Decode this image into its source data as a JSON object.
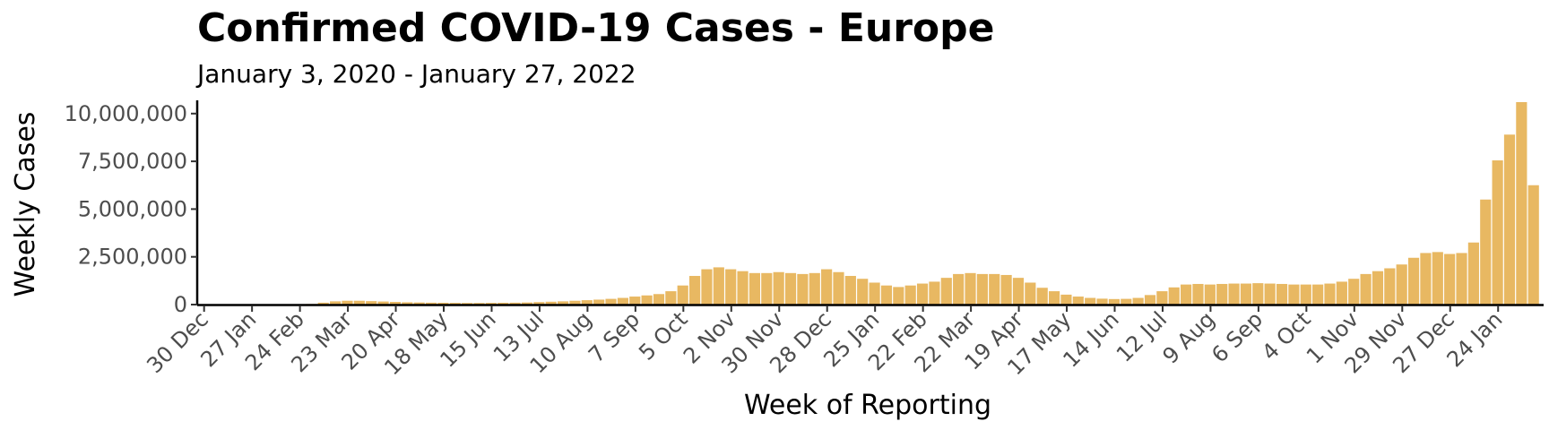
{
  "chart_data": {
    "type": "bar",
    "title": "Confirmed COVID-19 Cases - Europe",
    "subtitle": "January 3, 2020 - January 27, 2022",
    "xlabel": "Week of Reporting",
    "ylabel": "Weekly Cases",
    "ylim": [
      0,
      10600000
    ],
    "y_ticks": [
      0,
      2500000,
      5000000,
      7500000,
      10000000
    ],
    "y_tick_labels": [
      "0",
      "2,500,000",
      "5,000,000",
      "7,500,000",
      "10,000,000"
    ],
    "x_tick_labels": [
      "30 Dec",
      "27 Jan",
      "24 Feb",
      "23 Mar",
      "20 Apr",
      "18 May",
      "15 Jun",
      "13 Jul",
      "10 Aug",
      "7 Sep",
      "5 Oct",
      "2 Nov",
      "30 Nov",
      "28 Dec",
      "25 Jan",
      "22 Feb",
      "22 Mar",
      "19 Apr",
      "17 May",
      "14 Jun",
      "12 Jul",
      "9 Aug",
      "6 Sep",
      "4 Oct",
      "1 Nov",
      "29 Nov",
      "27 Dec",
      "24 Jan"
    ],
    "x_tick_every": 4,
    "bar_color": "#E8B862",
    "grid": false,
    "legend": "none",
    "values": [
      0,
      0,
      0,
      0,
      0,
      0,
      0,
      0,
      5000,
      30000,
      100000,
      170000,
      200000,
      200000,
      180000,
      160000,
      140000,
      120000,
      110000,
      100000,
      95000,
      90000,
      85000,
      85000,
      90000,
      95000,
      100000,
      110000,
      130000,
      150000,
      170000,
      200000,
      230000,
      260000,
      300000,
      350000,
      420000,
      480000,
      550000,
      700000,
      1000000,
      1500000,
      1850000,
      1950000,
      1850000,
      1750000,
      1650000,
      1650000,
      1700000,
      1650000,
      1600000,
      1650000,
      1850000,
      1700000,
      1500000,
      1350000,
      1150000,
      1000000,
      920000,
      1000000,
      1100000,
      1200000,
      1400000,
      1600000,
      1650000,
      1600000,
      1600000,
      1550000,
      1400000,
      1150000,
      880000,
      700000,
      520000,
      420000,
      350000,
      310000,
      290000,
      300000,
      350000,
      500000,
      700000,
      900000,
      1050000,
      1080000,
      1050000,
      1080000,
      1100000,
      1100000,
      1120000,
      1100000,
      1080000,
      1050000,
      1050000,
      1050000,
      1100000,
      1200000,
      1350000,
      1600000,
      1750000,
      1900000,
      2100000,
      2450000,
      2700000,
      2750000,
      2650000,
      2700000,
      3250000,
      5500000,
      7550000,
      8900000,
      10600000,
      6250000
    ]
  }
}
